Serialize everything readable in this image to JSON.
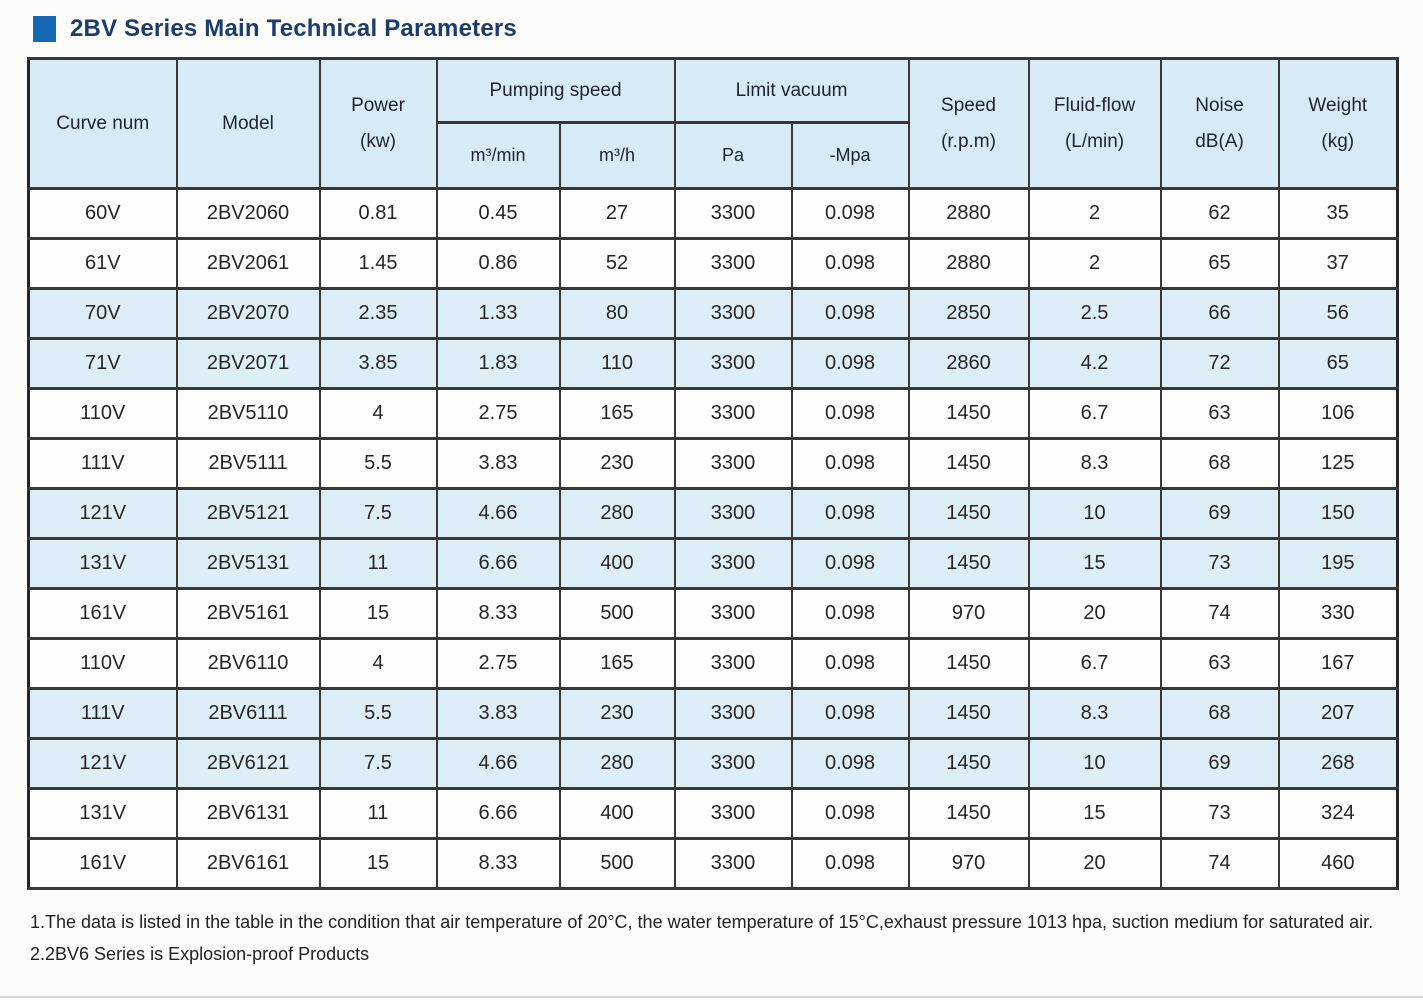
{
  "title": "2BV Series Main Technical Parameters",
  "colors": {
    "accent_square": "#1568b4",
    "title_color": "#1d3c6e",
    "header_bg": "#d7eaf5",
    "stripe_bg": "#deeef7",
    "border_color": "#383838"
  },
  "table": {
    "header": {
      "curve_num": "Curve num",
      "model": "Model",
      "power_line1": "Power",
      "power_line2": "(kw)",
      "pumping_speed": "Pumping speed",
      "pumping_sub_m3min": "m³/min",
      "pumping_sub_m3h": "m³/h",
      "limit_vacuum": "Limit vacuum",
      "vacuum_sub_pa": "Pa",
      "vacuum_sub_mpa": "-Mpa",
      "speed_line1": "Speed",
      "speed_line2": "(r.p.m)",
      "fluid_line1": "Fluid-flow",
      "fluid_line2": "(L/min)",
      "noise_line1": "Noise",
      "noise_line2": "dB(A)",
      "weight_line1": "Weight",
      "weight_line2": "(kg)"
    },
    "column_keys": [
      "curve_num",
      "model",
      "power_kw",
      "pumping_m3_min",
      "pumping_m3_h",
      "vacuum_pa",
      "vacuum_mpa",
      "speed_rpm",
      "fluid_flow_l_min",
      "noise_db",
      "weight_kg"
    ],
    "rows": [
      [
        "60V",
        "2BV2060",
        "0.81",
        "0.45",
        "27",
        "3300",
        "0.098",
        "2880",
        "2",
        "62",
        "35"
      ],
      [
        "61V",
        "2BV2061",
        "1.45",
        "0.86",
        "52",
        "3300",
        "0.098",
        "2880",
        "2",
        "65",
        "37"
      ],
      [
        "70V",
        "2BV2070",
        "2.35",
        "1.33",
        "80",
        "3300",
        "0.098",
        "2850",
        "2.5",
        "66",
        "56"
      ],
      [
        "71V",
        "2BV2071",
        "3.85",
        "1.83",
        "110",
        "3300",
        "0.098",
        "2860",
        "4.2",
        "72",
        "65"
      ],
      [
        "110V",
        "2BV5110",
        "4",
        "2.75",
        "165",
        "3300",
        "0.098",
        "1450",
        "6.7",
        "63",
        "106"
      ],
      [
        "111V",
        "2BV5111",
        "5.5",
        "3.83",
        "230",
        "3300",
        "0.098",
        "1450",
        "8.3",
        "68",
        "125"
      ],
      [
        "121V",
        "2BV5121",
        "7.5",
        "4.66",
        "280",
        "3300",
        "0.098",
        "1450",
        "10",
        "69",
        "150"
      ],
      [
        "131V",
        "2BV5131",
        "11",
        "6.66",
        "400",
        "3300",
        "0.098",
        "1450",
        "15",
        "73",
        "195"
      ],
      [
        "161V",
        "2BV5161",
        "15",
        "8.33",
        "500",
        "3300",
        "0.098",
        "970",
        "20",
        "74",
        "330"
      ],
      [
        "110V",
        "2BV6110",
        "4",
        "2.75",
        "165",
        "3300",
        "0.098",
        "1450",
        "6.7",
        "63",
        "167"
      ],
      [
        "111V",
        "2BV6111",
        "5.5",
        "3.83",
        "230",
        "3300",
        "0.098",
        "1450",
        "8.3",
        "68",
        "207"
      ],
      [
        "121V",
        "2BV6121",
        "7.5",
        "4.66",
        "280",
        "3300",
        "0.098",
        "1450",
        "10",
        "69",
        "268"
      ],
      [
        "131V",
        "2BV6131",
        "11",
        "6.66",
        "400",
        "3300",
        "0.098",
        "1450",
        "15",
        "73",
        "324"
      ],
      [
        "161V",
        "2BV6161",
        "15",
        "8.33",
        "500",
        "3300",
        "0.098",
        "970",
        "20",
        "74",
        "460"
      ]
    ]
  },
  "notes": [
    "1.The data is listed in the table in the condition that air temperature of 20°C, the water temperature of 15°C,exhaust pressure 1013 hpa, suction medium for saturated air.",
    "2.2BV6 Series is Explosion-proof Products"
  ]
}
